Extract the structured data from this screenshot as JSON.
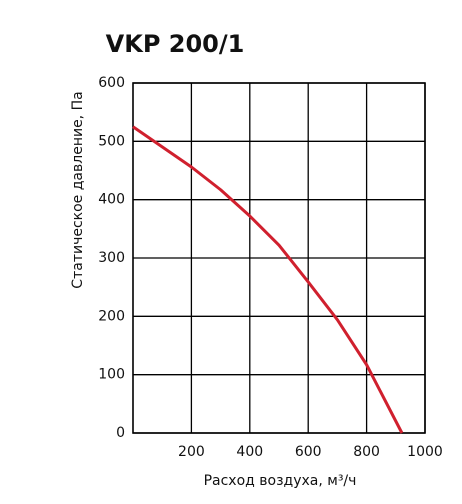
{
  "chart_data": {
    "type": "line",
    "title": "VKP 200/1",
    "x_label": "Расход воздуха, м³/ч",
    "y_label": "Статическое давление, Па",
    "xlim": [
      0,
      1000
    ],
    "ylim": [
      0,
      600
    ],
    "xticks": [
      200,
      400,
      600,
      800,
      1000
    ],
    "yticks": [
      0,
      100,
      200,
      300,
      400,
      500,
      600
    ],
    "grid": true,
    "series": [
      {
        "color": "#d0202e",
        "x": [
          0,
          200,
          300,
          400,
          500,
          600,
          700,
          800,
          921
        ],
        "values": [
          525,
          456,
          417,
          372,
          322,
          259,
          194,
          117,
          0
        ]
      }
    ]
  }
}
